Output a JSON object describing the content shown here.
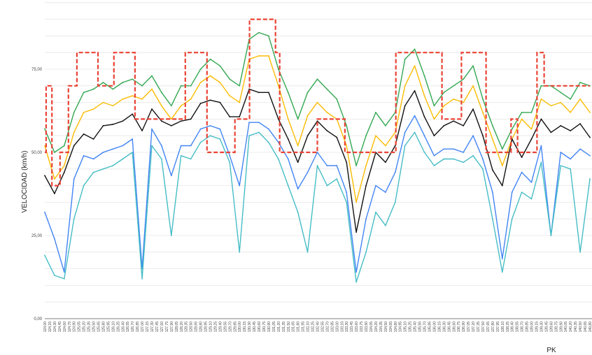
{
  "chart_data": {
    "type": "line",
    "title": "",
    "xlabel": "PK",
    "ylabel": "VELOCIDAD (km/h)",
    "ylim": [
      0,
      95
    ],
    "xlim": [
      124.0,
      140.8
    ],
    "grid": true,
    "ytick_step": 5,
    "y_tick_labels": [
      {
        "value": 0,
        "label": "0,00"
      },
      {
        "value": 25,
        "label": "25,00"
      },
      {
        "value": 50,
        "label": "50,00"
      },
      {
        "value": 75,
        "label": "75,00"
      }
    ],
    "x_tick_labels": [
      "124,00",
      "124,15",
      "124,30",
      "124,45",
      "124,60",
      "124,75",
      "124,90",
      "125,05",
      "125,20",
      "125,35",
      "125,50",
      "125,65",
      "125,80",
      "125,95",
      "126,10",
      "126,25",
      "126,40",
      "126,55",
      "126,70",
      "126,85",
      "127,00",
      "127,15",
      "127,30",
      "127,45",
      "127,60",
      "127,75",
      "127,90",
      "128,05",
      "128,20",
      "128,35",
      "128,50",
      "128,65",
      "128,80",
      "128,95",
      "129,10",
      "129,25",
      "129,40",
      "129,55",
      "129,70",
      "129,85",
      "130,00",
      "130,15",
      "130,30",
      "130,45",
      "130,60",
      "130,75",
      "130,90",
      "131,05",
      "131,20",
      "131,35",
      "131,50",
      "131,65",
      "131,80",
      "131,95",
      "132,10",
      "132,25",
      "132,40",
      "132,55",
      "132,70",
      "132,85",
      "133,00",
      "133,15",
      "133,30",
      "133,45",
      "133,60",
      "133,75",
      "133,90",
      "134,05",
      "134,20",
      "134,35",
      "134,50",
      "134,65",
      "134,80",
      "134,95",
      "135,10",
      "135,25",
      "135,40",
      "135,55",
      "135,70",
      "135,85",
      "136,00",
      "136,15",
      "136,30",
      "136,45",
      "136,60",
      "136,75",
      "136,90",
      "137,05",
      "137,20",
      "137,35",
      "137,50",
      "137,65",
      "137,80",
      "137,95",
      "138,10",
      "138,25",
      "138,40",
      "138,55",
      "138,70",
      "138,85",
      "139,00",
      "139,15",
      "139,30",
      "139,45",
      "139,60",
      "139,75",
      "139,90",
      "140,05",
      "140,20",
      "140,35",
      "140,50",
      "140,65",
      "140,80"
    ],
    "x": [
      124.0,
      124.3,
      124.6,
      124.9,
      125.2,
      125.5,
      125.8,
      126.1,
      126.4,
      126.7,
      127.0,
      127.3,
      127.6,
      127.9,
      128.2,
      128.5,
      128.8,
      129.1,
      129.4,
      129.7,
      130.0,
      130.3,
      130.6,
      130.9,
      131.2,
      131.5,
      131.8,
      132.1,
      132.4,
      132.7,
      133.0,
      133.3,
      133.6,
      133.9,
      134.2,
      134.5,
      134.8,
      135.1,
      135.4,
      135.7,
      136.0,
      136.3,
      136.6,
      136.9,
      137.2,
      137.5,
      137.8,
      138.1,
      138.4,
      138.7,
      139.0,
      139.3,
      139.6,
      139.9,
      140.2,
      140.5,
      140.8
    ],
    "series": [
      {
        "name": "green",
        "color": "#34a853",
        "values": [
          57,
          50,
          52,
          62,
          68,
          69,
          71,
          69,
          71,
          72,
          70,
          73,
          68,
          64,
          70,
          70,
          75,
          78,
          76,
          72,
          70,
          84,
          86,
          85,
          75,
          68,
          60,
          68,
          72,
          69,
          66,
          58,
          46,
          55,
          62,
          58,
          62,
          78,
          81,
          73,
          64,
          68,
          70,
          72,
          76,
          66,
          58,
          51,
          57,
          62,
          62,
          70,
          70,
          68,
          66,
          71,
          70
        ]
      },
      {
        "name": "yellow",
        "color": "#fbbc04",
        "values": [
          52,
          42,
          46,
          56,
          62,
          63,
          65,
          64,
          66,
          67,
          66,
          69,
          64,
          60,
          64,
          66,
          71,
          73,
          71,
          67,
          65,
          78,
          79,
          79,
          70,
          60,
          52,
          61,
          65,
          62,
          60,
          52,
          35,
          46,
          55,
          52,
          56,
          70,
          76,
          67,
          60,
          64,
          66,
          65,
          70,
          62,
          54,
          46,
          54,
          60,
          57,
          66,
          64,
          65,
          62,
          66,
          62
        ]
      },
      {
        "name": "black",
        "color": "#111111",
        "values": [
          43,
          37.6,
          44,
          52,
          55.5,
          54,
          58,
          58.4,
          59.4,
          61.5,
          56.5,
          63,
          59.4,
          58,
          59.4,
          60,
          64.7,
          65.7,
          65,
          60.7,
          60.7,
          69,
          68,
          68,
          60,
          54,
          47,
          55,
          59.4,
          56.5,
          54.5,
          47,
          26,
          40,
          50,
          47,
          52,
          64,
          68.5,
          60.7,
          55,
          58,
          59.4,
          58,
          63,
          55,
          44.7,
          40,
          54,
          48.5,
          54,
          60,
          56,
          58,
          56.5,
          58.6,
          54.5
        ]
      },
      {
        "name": "blue",
        "color": "#4285f4",
        "values": [
          32,
          24,
          14,
          42,
          49,
          48,
          50,
          51,
          52,
          54,
          15,
          57,
          52,
          43,
          52,
          52,
          57,
          58,
          57,
          49,
          40,
          59,
          59,
          57,
          53,
          48,
          39,
          44,
          50,
          46,
          46,
          38,
          14,
          30,
          40,
          38,
          44,
          56,
          61,
          55,
          49,
          51,
          51,
          50,
          55,
          48,
          38,
          18,
          38,
          44,
          41,
          52,
          25,
          50,
          48,
          51,
          49
        ]
      },
      {
        "name": "cyan",
        "color": "#46bdc6",
        "values": [
          19,
          13,
          12,
          30,
          40,
          44,
          45,
          46,
          48,
          50,
          12,
          52,
          48,
          25,
          49,
          48,
          53,
          55,
          54,
          47,
          20,
          55,
          56,
          53,
          48,
          40,
          32,
          20,
          46,
          40,
          42,
          35,
          11,
          20,
          32,
          28,
          35,
          52,
          56,
          50,
          46,
          48,
          48,
          47,
          49,
          45,
          30,
          14,
          30,
          38,
          36,
          47,
          25,
          46,
          45,
          20,
          42
        ]
      }
    ],
    "limit_series": {
      "name": "speed-limit",
      "color": "#ea4335",
      "style": "dashed-step",
      "steps": [
        [
          124.0,
          50
        ],
        [
          124.04,
          70
        ],
        [
          124.22,
          40
        ],
        [
          124.47,
          50
        ],
        [
          124.73,
          70
        ],
        [
          124.99,
          80
        ],
        [
          125.64,
          70
        ],
        [
          126.13,
          80
        ],
        [
          126.78,
          60
        ],
        [
          128.33,
          80
        ],
        [
          129.0,
          50
        ],
        [
          129.86,
          60
        ],
        [
          130.31,
          90
        ],
        [
          131.11,
          80
        ],
        [
          131.24,
          50
        ],
        [
          132.4,
          60
        ],
        [
          133.25,
          50
        ],
        [
          134.82,
          80
        ],
        [
          136.24,
          60
        ],
        [
          136.84,
          80
        ],
        [
          137.6,
          50
        ],
        [
          138.37,
          60
        ],
        [
          138.57,
          50
        ],
        [
          139.17,
          80
        ],
        [
          139.39,
          70
        ]
      ]
    }
  }
}
